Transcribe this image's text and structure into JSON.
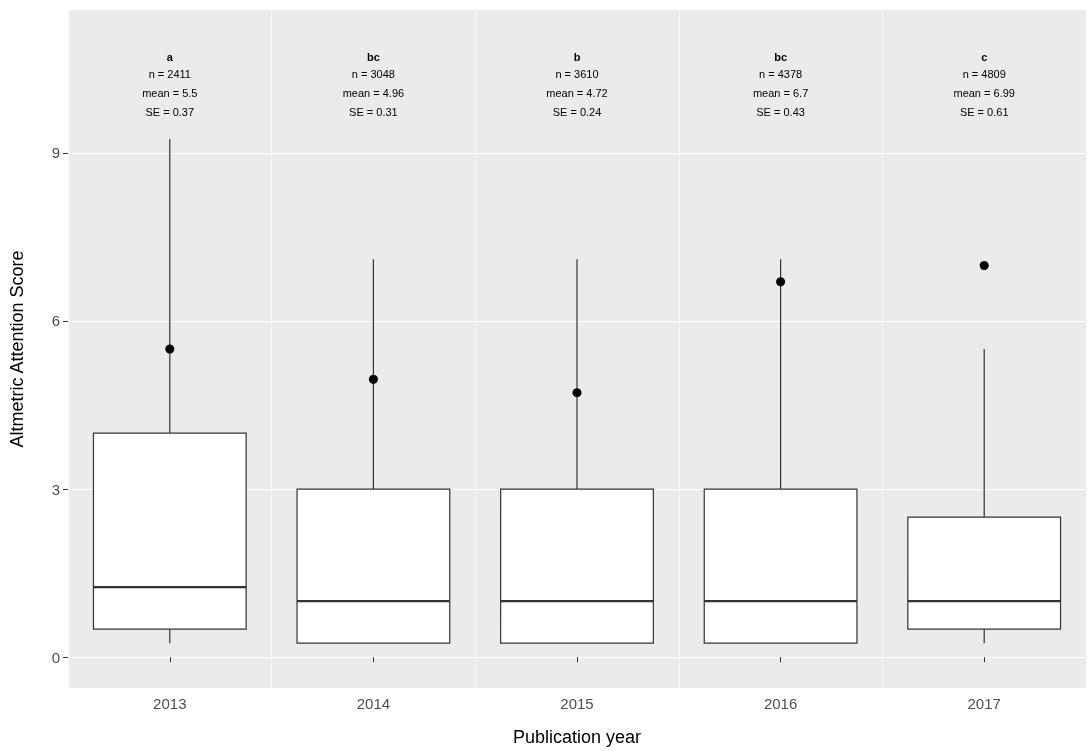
{
  "chart_data": {
    "type": "box",
    "xlabel": "Publication year",
    "ylabel": "Altmetric Attention Score",
    "categories": [
      "2013",
      "2014",
      "2015",
      "2016",
      "2017"
    ],
    "boxes": [
      {
        "low": 0.25,
        "q1": 0.5,
        "median": 1.25,
        "q3": 4,
        "high": 9.25
      },
      {
        "low": 0.25,
        "q1": 0.25,
        "median": 1,
        "q3": 3,
        "high": 7.1
      },
      {
        "low": 0.25,
        "q1": 0.25,
        "median": 1,
        "q3": 3,
        "high": 7.1
      },
      {
        "low": 0.25,
        "q1": 0.25,
        "median": 1,
        "q3": 3,
        "high": 7.1
      },
      {
        "low": 0.25,
        "q1": 0.5,
        "median": 1,
        "q3": 2.5,
        "high": 5.5
      }
    ],
    "series": [
      {
        "type": "scatter",
        "values": [
          5.5,
          4.96,
          4.72,
          6.7,
          6.99
        ],
        "color": "#000000"
      }
    ],
    "ylim": [
      -0.55,
      11.55
    ],
    "yticks": [
      0,
      3,
      6,
      9
    ],
    "grid": true,
    "marker": "circle",
    "annotations": [
      "a",
      "n = 2411\nmean = 5.5\nSE = 0.37",
      "bc",
      "n = 3048\nmean = 4.96\nSE = 0.31",
      "b",
      "n = 3610\nmean = 4.72\nSE = 0.24",
      "bc",
      "n = 4378\nmean = 6.7\nSE = 0.43",
      "c",
      "n = 4809\nmean = 6.99\nSE = 0.61"
    ]
  }
}
